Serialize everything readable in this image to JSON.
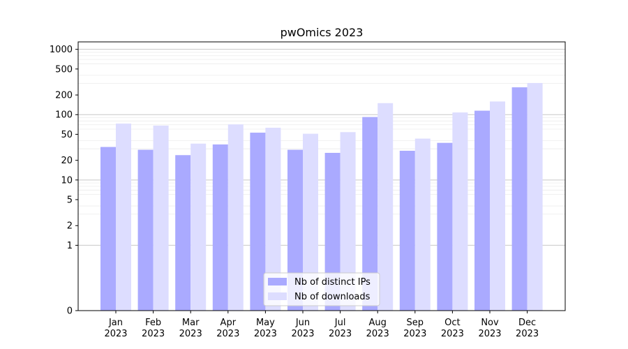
{
  "chart_data": {
    "type": "bar",
    "title": "pwOmics 2023",
    "xlabel": "",
    "ylabel": "",
    "yscale": "symlog",
    "ylim": [
      0,
      1300
    ],
    "y_ticks": [
      0,
      1,
      2,
      5,
      10,
      20,
      50,
      100,
      200,
      500,
      1000
    ],
    "y_tick_labels": [
      "0",
      "1",
      "2",
      "5",
      "10",
      "20",
      "50",
      "100",
      "200",
      "500",
      "1000"
    ],
    "grid": true,
    "legend_position": "bottom-center",
    "categories": [
      [
        "Jan",
        "2023"
      ],
      [
        "Feb",
        "2023"
      ],
      [
        "Mar",
        "2023"
      ],
      [
        "Apr",
        "2023"
      ],
      [
        "May",
        "2023"
      ],
      [
        "Jun",
        "2023"
      ],
      [
        "Jul",
        "2023"
      ],
      [
        "Aug",
        "2023"
      ],
      [
        "Sep",
        "2023"
      ],
      [
        "Oct",
        "2023"
      ],
      [
        "Nov",
        "2023"
      ],
      [
        "Dec",
        "2023"
      ]
    ],
    "series": [
      {
        "name": "Nb of distinct IPs",
        "color": "#aaaaff",
        "values": [
          32,
          29,
          24,
          35,
          53,
          29,
          26,
          92,
          28,
          37,
          115,
          262
        ]
      },
      {
        "name": "Nb of downloads",
        "color": "#ddddff",
        "values": [
          73,
          68,
          36,
          71,
          63,
          51,
          54,
          150,
          43,
          108,
          159,
          305
        ]
      }
    ]
  }
}
